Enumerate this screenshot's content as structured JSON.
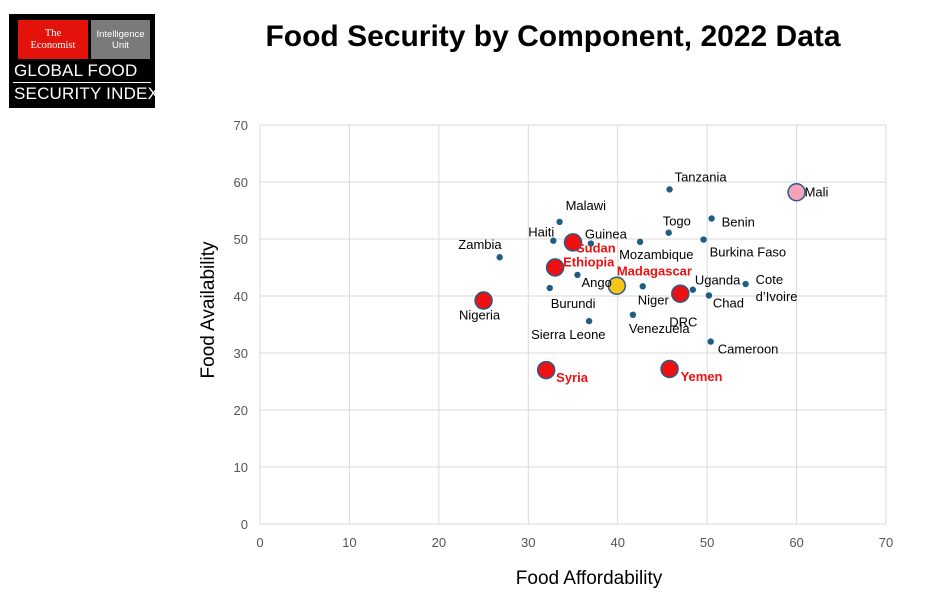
{
  "logo": {
    "economist_line1": "The",
    "economist_line2": "Economist",
    "eiu_line1": "Intelligence",
    "eiu_line2": "Unit",
    "index_line1": "GLOBAL FOOD",
    "index_line2": "SECURITY INDEX"
  },
  "colors": {
    "small_point": "#1f5d84",
    "highlight_red": "#ee1111",
    "highlight_label": "#ee1111",
    "madagascar_fill": "#f5c518",
    "mali_fill": "#f4a3b8",
    "big_point_edge": "#2b5a86",
    "grid": "#d9d9d9"
  },
  "chart_data": {
    "type": "scatter",
    "title": "Food Security by Component, 2022 Data",
    "xlabel": "Food Affordability",
    "ylabel": "Food Availability",
    "xlim": [
      0,
      70
    ],
    "ylim": [
      0,
      70
    ],
    "xticks": [
      0,
      10,
      20,
      30,
      40,
      50,
      60,
      70
    ],
    "yticks": [
      0,
      10,
      20,
      30,
      40,
      50,
      60,
      70
    ],
    "grid": true,
    "points": [
      {
        "label": "Tanzania",
        "x": 45.8,
        "y": 58.7,
        "kind": "small"
      },
      {
        "label": "Mali",
        "x": 60.0,
        "y": 58.2,
        "kind": "mali"
      },
      {
        "label": "Malawi",
        "x": 33.5,
        "y": 53.0,
        "kind": "small"
      },
      {
        "label": "Benin",
        "x": 50.5,
        "y": 53.6,
        "kind": "small"
      },
      {
        "label": "Togo",
        "x": 45.7,
        "y": 51.1,
        "kind": "small"
      },
      {
        "label": "Haiti",
        "x": 32.8,
        "y": 49.7,
        "kind": "small"
      },
      {
        "label": "Sudan",
        "x": 35.0,
        "y": 49.4,
        "kind": "highlight"
      },
      {
        "label": "Guinea",
        "x": 37.0,
        "y": 49.2,
        "kind": "small"
      },
      {
        "label": "Mozambique",
        "x": 42.5,
        "y": 49.5,
        "kind": "small"
      },
      {
        "label": "Burkina Faso",
        "x": 49.6,
        "y": 49.9,
        "kind": "small"
      },
      {
        "label": "Zambia",
        "x": 26.8,
        "y": 46.8,
        "kind": "small"
      },
      {
        "label": "Ethiopia",
        "x": 33.0,
        "y": 45.0,
        "kind": "highlight"
      },
      {
        "label": "Madagascar",
        "x": 39.9,
        "y": 41.8,
        "kind": "madagascar"
      },
      {
        "label": "Uganda",
        "x": 48.4,
        "y": 41.1,
        "kind": "small"
      },
      {
        "label": "Cote d’Ivoire",
        "x": 54.3,
        "y": 42.1,
        "kind": "small"
      },
      {
        "label": "Angola",
        "x": 35.5,
        "y": 43.7,
        "kind": "small"
      },
      {
        "label": "Burundi",
        "x": 32.4,
        "y": 41.4,
        "kind": "small"
      },
      {
        "label": "Niger",
        "x": 42.8,
        "y": 41.7,
        "kind": "small"
      },
      {
        "label": "DRC",
        "x": 47.0,
        "y": 40.4,
        "kind": "highlight"
      },
      {
        "label": "Chad",
        "x": 50.2,
        "y": 40.1,
        "kind": "small"
      },
      {
        "label": "Nigeria",
        "x": 25.0,
        "y": 39.2,
        "kind": "highlight"
      },
      {
        "label": "Venezuela",
        "x": 41.7,
        "y": 36.7,
        "kind": "small"
      },
      {
        "label": "Sierra Leone",
        "x": 36.8,
        "y": 35.6,
        "kind": "small"
      },
      {
        "label": "Cameroon",
        "x": 50.4,
        "y": 32.0,
        "kind": "small"
      },
      {
        "label": "Syria",
        "x": 32.0,
        "y": 27.0,
        "kind": "highlight"
      },
      {
        "label": "Yemen",
        "x": 45.8,
        "y": 27.2,
        "kind": "highlight"
      }
    ]
  }
}
